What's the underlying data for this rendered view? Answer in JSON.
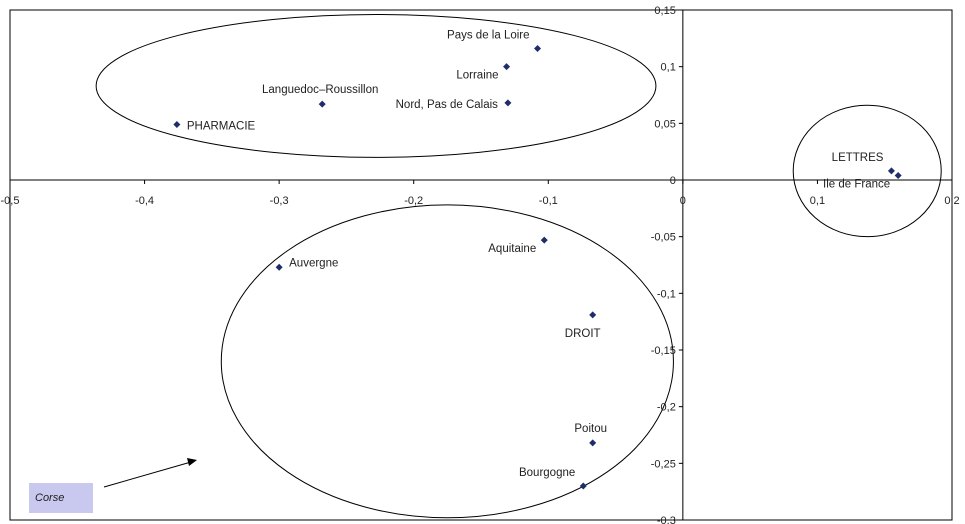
{
  "chart_data": {
    "type": "scatter",
    "title": "",
    "xlabel": "",
    "ylabel": "",
    "xlim": [
      -0.5,
      0.2
    ],
    "ylim": [
      -0.3,
      0.15
    ],
    "grid": false,
    "marker_color": "#1f2d6b",
    "x_ticks": [
      "-0,5",
      "-0,4",
      "-0,3",
      "-0,2",
      "-0,1",
      "0",
      "0,1",
      "0,2"
    ],
    "x_tick_values": [
      -0.5,
      -0.4,
      -0.3,
      -0.2,
      -0.1,
      0,
      0.1,
      0.2
    ],
    "y_ticks": [
      "0,15",
      "0,1",
      "0,05",
      "0",
      "-0,05",
      "-0,1",
      "-0,15",
      "-0,2",
      "-0,25",
      "-0,3"
    ],
    "y_tick_values": [
      0.15,
      0.1,
      0.05,
      0,
      -0.05,
      -0.1,
      -0.15,
      -0.2,
      -0.25,
      -0.3
    ],
    "points": [
      {
        "label": "Pays de la Loire",
        "x": -0.108,
        "y": 0.116,
        "anchor": "above-left"
      },
      {
        "label": "Lorraine",
        "x": -0.131,
        "y": 0.1,
        "anchor": "below-left"
      },
      {
        "label": "Languedoc–Roussillon",
        "x": -0.268,
        "y": 0.067,
        "anchor": "above"
      },
      {
        "label": "Nord, Pas de Calais",
        "x": -0.13,
        "y": 0.068,
        "anchor": "left"
      },
      {
        "label": "PHARMACIE",
        "x": -0.376,
        "y": 0.049,
        "anchor": "right"
      },
      {
        "label": "LETTRES",
        "x": 0.155,
        "y": 0.008,
        "anchor": "above-left"
      },
      {
        "label": "Ile de France",
        "x": 0.16,
        "y": 0.004,
        "anchor": "below-left"
      },
      {
        "label": "Aquitaine",
        "x": -0.103,
        "y": -0.053,
        "anchor": "below-left"
      },
      {
        "label": "Auvergne",
        "x": -0.3,
        "y": -0.077,
        "anchor": "above-right"
      },
      {
        "label": "DROIT",
        "x": -0.067,
        "y": -0.119,
        "anchor": "below"
      },
      {
        "label": "Poitou",
        "x": -0.067,
        "y": -0.232,
        "anchor": "above"
      },
      {
        "label": "Bourgogne",
        "x": -0.074,
        "y": -0.27,
        "anchor": "above-left"
      }
    ],
    "groups": [
      {
        "cx": -0.228,
        "cy": 0.083,
        "rx": 0.208,
        "ry": 0.063
      },
      {
        "cx": -0.175,
        "cy": -0.16,
        "rx": 0.168,
        "ry": 0.138
      },
      {
        "cx": 0.137,
        "cy": 0.008,
        "rx": 0.055,
        "ry": 0.058
      }
    ],
    "annotation": {
      "text": "Corse",
      "box_color": "#c9c8ee"
    }
  }
}
